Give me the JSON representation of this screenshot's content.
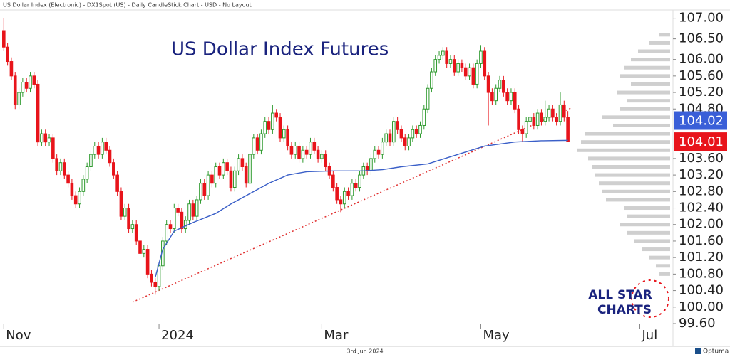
{
  "header": {
    "text": "US Dollar Index (Electronic) - DX1Spot (US) - Daily CandleStick Chart - USD - No Layout"
  },
  "chart_data": {
    "type": "candlestick",
    "title": "US Dollar Index Futures",
    "up_color": "#2e9a2e",
    "down_color": "#e8141b",
    "candles": [
      [
        106.7,
        107.0,
        106.2,
        106.3
      ],
      [
        106.3,
        106.4,
        105.85,
        105.95
      ],
      [
        105.95,
        106.05,
        105.5,
        105.6
      ],
      [
        105.6,
        105.7,
        104.8,
        104.9
      ],
      [
        104.9,
        105.3,
        104.8,
        105.2
      ],
      [
        105.2,
        105.55,
        105.1,
        105.45
      ],
      [
        105.45,
        105.55,
        105.2,
        105.3
      ],
      [
        105.3,
        105.7,
        105.2,
        105.6
      ],
      [
        105.6,
        105.7,
        105.3,
        105.4
      ],
      [
        105.4,
        105.5,
        103.9,
        104.0
      ],
      [
        104.0,
        104.3,
        103.9,
        104.2
      ],
      [
        104.2,
        104.3,
        103.9,
        104.0
      ],
      [
        104.0,
        104.2,
        103.9,
        104.1
      ],
      [
        104.1,
        104.2,
        103.5,
        103.6
      ],
      [
        103.6,
        103.7,
        103.2,
        103.3
      ],
      [
        103.3,
        103.6,
        103.2,
        103.5
      ],
      [
        103.5,
        103.6,
        103.1,
        103.2
      ],
      [
        103.2,
        103.3,
        102.9,
        103.0
      ],
      [
        103.0,
        103.1,
        102.6,
        102.7
      ],
      [
        102.7,
        102.8,
        102.4,
        102.5
      ],
      [
        102.5,
        102.9,
        102.4,
        102.8
      ],
      [
        102.8,
        103.2,
        102.7,
        103.1
      ],
      [
        103.1,
        103.5,
        103.0,
        103.4
      ],
      [
        103.4,
        103.8,
        103.3,
        103.7
      ],
      [
        103.7,
        104.0,
        103.6,
        103.9
      ],
      [
        103.9,
        104.0,
        103.6,
        103.7
      ],
      [
        103.7,
        104.1,
        103.6,
        104.0
      ],
      [
        104.0,
        104.1,
        103.7,
        103.8
      ],
      [
        103.8,
        103.9,
        103.4,
        103.5
      ],
      [
        103.5,
        103.6,
        103.1,
        103.2
      ],
      [
        103.2,
        103.3,
        102.7,
        102.8
      ],
      [
        102.8,
        102.9,
        102.1,
        102.2
      ],
      [
        102.2,
        102.5,
        102.1,
        102.4
      ],
      [
        102.4,
        102.5,
        101.8,
        101.9
      ],
      [
        101.9,
        102.1,
        101.8,
        102.0
      ],
      [
        102.0,
        102.1,
        101.5,
        101.6
      ],
      [
        101.6,
        101.7,
        101.2,
        101.3
      ],
      [
        101.3,
        101.5,
        101.2,
        101.4
      ],
      [
        101.4,
        101.5,
        100.7,
        100.8
      ],
      [
        100.8,
        100.9,
        100.5,
        100.6
      ],
      [
        100.6,
        100.7,
        100.3,
        100.5
      ],
      [
        100.5,
        101.1,
        100.4,
        101.0
      ],
      [
        101.0,
        101.7,
        100.9,
        101.6
      ],
      [
        101.6,
        102.1,
        101.5,
        102.0
      ],
      [
        102.0,
        102.1,
        101.8,
        101.9
      ],
      [
        101.9,
        102.5,
        101.8,
        102.4
      ],
      [
        102.4,
        102.5,
        102.2,
        102.3
      ],
      [
        102.3,
        102.4,
        101.8,
        101.9
      ],
      [
        101.9,
        102.2,
        101.8,
        102.1
      ],
      [
        102.1,
        102.6,
        102.0,
        102.5
      ],
      [
        102.5,
        102.6,
        102.1,
        102.2
      ],
      [
        102.2,
        102.7,
        102.1,
        102.6
      ],
      [
        102.6,
        103.1,
        102.5,
        103.0
      ],
      [
        103.0,
        103.1,
        102.6,
        102.7
      ],
      [
        102.7,
        103.3,
        102.6,
        103.2
      ],
      [
        103.2,
        103.3,
        102.9,
        103.0
      ],
      [
        103.0,
        103.5,
        102.9,
        103.4
      ],
      [
        103.4,
        103.5,
        103.1,
        103.2
      ],
      [
        103.2,
        103.6,
        103.1,
        103.5
      ],
      [
        103.5,
        103.6,
        103.2,
        103.3
      ],
      [
        103.3,
        103.4,
        102.8,
        102.9
      ],
      [
        102.9,
        103.4,
        102.8,
        103.3
      ],
      [
        103.3,
        103.7,
        103.2,
        103.6
      ],
      [
        103.6,
        103.7,
        103.3,
        103.4
      ],
      [
        103.4,
        103.5,
        102.9,
        103.0
      ],
      [
        103.0,
        103.8,
        102.9,
        103.7
      ],
      [
        103.7,
        104.2,
        103.6,
        104.1
      ],
      [
        104.1,
        104.2,
        103.7,
        103.8
      ],
      [
        103.8,
        104.3,
        103.7,
        104.2
      ],
      [
        104.2,
        104.6,
        104.1,
        104.5
      ],
      [
        104.5,
        104.6,
        104.2,
        104.3
      ],
      [
        104.3,
        104.9,
        104.2,
        104.7
      ],
      [
        104.7,
        104.8,
        104.5,
        104.6
      ],
      [
        104.6,
        104.7,
        104.0,
        104.1
      ],
      [
        104.1,
        104.4,
        104.0,
        104.3
      ],
      [
        104.3,
        104.4,
        103.8,
        103.9
      ],
      [
        103.9,
        104.0,
        103.6,
        103.7
      ],
      [
        103.7,
        104.0,
        103.6,
        103.9
      ],
      [
        103.9,
        104.0,
        103.5,
        103.6
      ],
      [
        103.6,
        103.9,
        103.5,
        103.8
      ],
      [
        103.8,
        103.9,
        103.6,
        103.7
      ],
      [
        103.7,
        104.1,
        103.6,
        104.0
      ],
      [
        104.0,
        104.1,
        103.7,
        103.8
      ],
      [
        103.8,
        103.9,
        103.5,
        103.6
      ],
      [
        103.6,
        103.8,
        103.5,
        103.7
      ],
      [
        103.7,
        103.8,
        103.3,
        103.4
      ],
      [
        103.4,
        103.5,
        103.1,
        103.2
      ],
      [
        103.2,
        103.3,
        102.8,
        102.9
      ],
      [
        102.9,
        103.0,
        102.5,
        102.6
      ],
      [
        102.6,
        102.7,
        102.3,
        102.5
      ],
      [
        102.5,
        102.9,
        102.4,
        102.8
      ],
      [
        102.8,
        102.9,
        102.6,
        102.7
      ],
      [
        102.7,
        103.1,
        102.6,
        103.0
      ],
      [
        103.0,
        103.1,
        102.8,
        102.9
      ],
      [
        102.9,
        103.3,
        102.8,
        103.2
      ],
      [
        103.2,
        103.5,
        103.1,
        103.4
      ],
      [
        103.4,
        103.5,
        103.2,
        103.3
      ],
      [
        103.3,
        103.7,
        103.2,
        103.6
      ],
      [
        103.6,
        103.9,
        103.5,
        103.8
      ],
      [
        103.8,
        103.9,
        103.6,
        103.7
      ],
      [
        103.7,
        104.1,
        103.6,
        104.0
      ],
      [
        104.0,
        104.3,
        103.9,
        104.2
      ],
      [
        104.2,
        104.3,
        103.9,
        104.0
      ],
      [
        104.0,
        104.6,
        103.9,
        104.5
      ],
      [
        104.5,
        104.6,
        104.2,
        104.3
      ],
      [
        104.3,
        104.4,
        104.0,
        104.1
      ],
      [
        104.1,
        104.2,
        103.8,
        103.9
      ],
      [
        103.9,
        104.2,
        103.8,
        104.1
      ],
      [
        104.1,
        104.4,
        104.0,
        104.3
      ],
      [
        104.3,
        104.4,
        104.1,
        104.2
      ],
      [
        104.2,
        104.5,
        104.1,
        104.4
      ],
      [
        104.4,
        104.9,
        104.3,
        104.8
      ],
      [
        104.8,
        105.4,
        104.7,
        105.3
      ],
      [
        105.3,
        105.8,
        105.2,
        105.7
      ],
      [
        105.7,
        106.1,
        105.6,
        106.0
      ],
      [
        106.0,
        106.2,
        105.9,
        106.1
      ],
      [
        106.1,
        106.3,
        106.0,
        106.2
      ],
      [
        106.2,
        106.3,
        105.8,
        105.9
      ],
      [
        105.9,
        106.1,
        105.8,
        106.0
      ],
      [
        106.0,
        106.1,
        105.6,
        105.7
      ],
      [
        105.7,
        106.0,
        105.6,
        105.9
      ],
      [
        105.9,
        106.0,
        105.7,
        105.8
      ],
      [
        105.8,
        105.9,
        105.5,
        105.6
      ],
      [
        105.6,
        105.9,
        105.5,
        105.8
      ],
      [
        105.8,
        105.9,
        105.3,
        105.4
      ],
      [
        105.4,
        106.0,
        105.3,
        105.9
      ],
      [
        105.9,
        106.35,
        105.8,
        106.2
      ],
      [
        106.2,
        106.3,
        105.5,
        105.6
      ],
      [
        105.6,
        105.7,
        104.4,
        105.2
      ],
      [
        105.2,
        105.3,
        104.9,
        105.0
      ],
      [
        105.0,
        105.4,
        104.9,
        105.3
      ],
      [
        105.3,
        105.6,
        105.2,
        105.5
      ],
      [
        105.5,
        105.6,
        105.1,
        105.2
      ],
      [
        105.2,
        105.3,
        104.9,
        105.0
      ],
      [
        105.0,
        105.3,
        104.9,
        105.2
      ],
      [
        105.2,
        105.3,
        104.7,
        104.8
      ],
      [
        104.8,
        104.9,
        104.2,
        104.3
      ],
      [
        104.3,
        104.4,
        104.0,
        104.2
      ],
      [
        104.2,
        104.6,
        104.1,
        104.5
      ],
      [
        104.5,
        104.7,
        104.4,
        104.6
      ],
      [
        104.6,
        104.7,
        104.3,
        104.4
      ],
      [
        104.4,
        104.8,
        104.3,
        104.7
      ],
      [
        104.7,
        104.8,
        104.4,
        104.5
      ],
      [
        104.5,
        105.0,
        104.4,
        104.6
      ],
      [
        104.6,
        104.9,
        104.5,
        104.8
      ],
      [
        104.8,
        104.9,
        104.5,
        104.6
      ],
      [
        104.6,
        104.7,
        104.4,
        104.5
      ],
      [
        104.5,
        105.2,
        104.4,
        104.9
      ],
      [
        104.9,
        105.0,
        104.5,
        104.6
      ],
      [
        104.6,
        104.75,
        104.0,
        104.01
      ]
    ],
    "xlim": [
      -1,
      176
    ],
    "xticks": [
      {
        "value": 0,
        "label": "Nov"
      },
      {
        "value": 41,
        "label": "2024"
      },
      {
        "value": 84,
        "label": "Mar"
      },
      {
        "value": 126,
        "label": "May"
      },
      {
        "value": 168,
        "label": "Jul"
      }
    ],
    "ylim": [
      99.6,
      107.2
    ],
    "yticks": [
      {
        "value": 99.6,
        "label": "99.60"
      },
      {
        "value": 100,
        "label": "100.00"
      },
      {
        "value": 100.4,
        "label": "100.40"
      },
      {
        "value": 100.8,
        "label": "100.80"
      },
      {
        "value": 101.2,
        "label": "101.20"
      },
      {
        "value": 101.6,
        "label": "101.60"
      },
      {
        "value": 102,
        "label": "102.00"
      },
      {
        "value": 102.4,
        "label": "102.40"
      },
      {
        "value": 102.8,
        "label": "102.80"
      },
      {
        "value": 103.2,
        "label": "103.20"
      },
      {
        "value": 103.6,
        "label": "103.60"
      },
      {
        "value": 104.8,
        "label": "104.80"
      },
      {
        "value": 105.2,
        "label": "105.20"
      },
      {
        "value": 105.6,
        "label": "105.60"
      },
      {
        "value": 106,
        "label": "106.00"
      },
      {
        "value": 106.5,
        "label": "106.50"
      },
      {
        "value": 107,
        "label": "107.00"
      }
    ],
    "moving_average": {
      "color": "#3a5fc8",
      "x": [
        40,
        42,
        45,
        50,
        56,
        60,
        65,
        70,
        75,
        80,
        87,
        95,
        100,
        105,
        112,
        120,
        127,
        135,
        142,
        149
      ],
      "values": [
        100.72,
        101.4,
        101.84,
        102.05,
        102.27,
        102.5,
        102.75,
        103.0,
        103.2,
        103.28,
        103.3,
        103.3,
        103.33,
        103.4,
        103.47,
        103.7,
        103.9,
        104.0,
        104.03,
        104.04
      ]
    },
    "trendline": {
      "color": "#e03030",
      "x": [
        34,
        150
      ],
      "values": [
        100.12,
        104.83
      ]
    },
    "volume_profile": {
      "color": "#cfcfcf",
      "prices": [
        100.8,
        101.0,
        101.2,
        101.4,
        101.6,
        101.8,
        102.0,
        102.2,
        102.4,
        102.6,
        102.8,
        103.0,
        103.2,
        103.4,
        103.6,
        103.8,
        104.0,
        104.2,
        104.4,
        104.6,
        104.8,
        105.0,
        105.2,
        105.4,
        105.6,
        105.8,
        106.0,
        106.2,
        106.4,
        106.6
      ],
      "values": [
        15,
        20,
        30,
        40,
        50,
        60,
        70,
        60,
        65,
        90,
        95,
        100,
        105,
        110,
        115,
        130,
        125,
        120,
        80,
        95,
        70,
        60,
        75,
        55,
        70,
        65,
        55,
        45,
        30,
        15
      ]
    },
    "price_tags": [
      {
        "value": 104.02,
        "color": "#3a5fd8"
      },
      {
        "value": 104.01,
        "color": "#e8141b"
      }
    ]
  },
  "logo": {
    "line1": "ALL STAR",
    "line2": "CHARTS"
  },
  "footer": {
    "date": "3rd Jun 2024",
    "brand": "Optuma"
  }
}
